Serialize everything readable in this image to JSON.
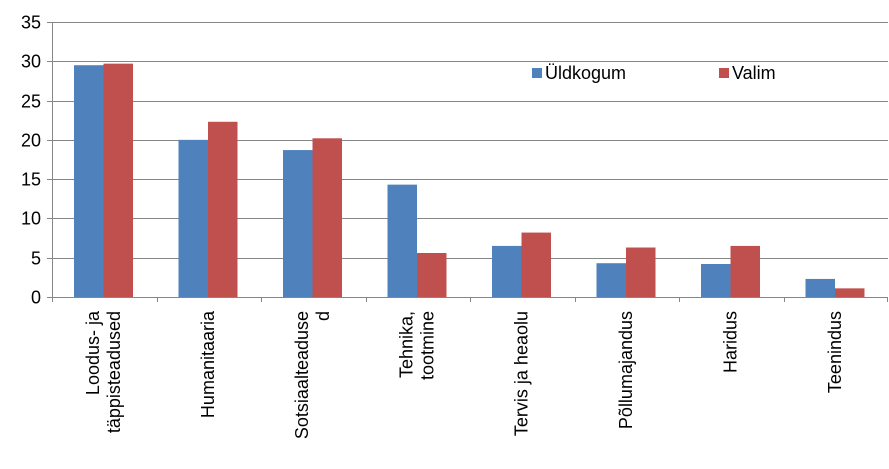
{
  "chart_data": {
    "type": "bar",
    "categories": [
      [
        "Loodus- ja",
        "täppisteadused"
      ],
      [
        "Humanitaaria"
      ],
      [
        "Sotsiaalteaduse",
        "d"
      ],
      [
        "Tehnika,",
        "tootmine"
      ],
      [
        "Tervis ja heaolu"
      ],
      [
        "Põllumajandus"
      ],
      [
        "Haridus"
      ],
      [
        "Teenindus"
      ]
    ],
    "series": [
      {
        "name": "Üldkogum",
        "color": "#4F81BD",
        "values": [
          29.5,
          20.0,
          18.7,
          14.3,
          6.5,
          4.3,
          4.2,
          2.3
        ]
      },
      {
        "name": "Valim",
        "color": "#C0504D",
        "values": [
          29.7,
          22.3,
          20.2,
          5.6,
          8.2,
          6.3,
          6.5,
          1.1
        ]
      }
    ],
    "ylim": [
      0,
      35
    ],
    "yticks": [
      0,
      5,
      10,
      15,
      20,
      25,
      30,
      35
    ],
    "grid": true,
    "legend": "top-right",
    "title": "",
    "xlabel": "",
    "ylabel": ""
  }
}
